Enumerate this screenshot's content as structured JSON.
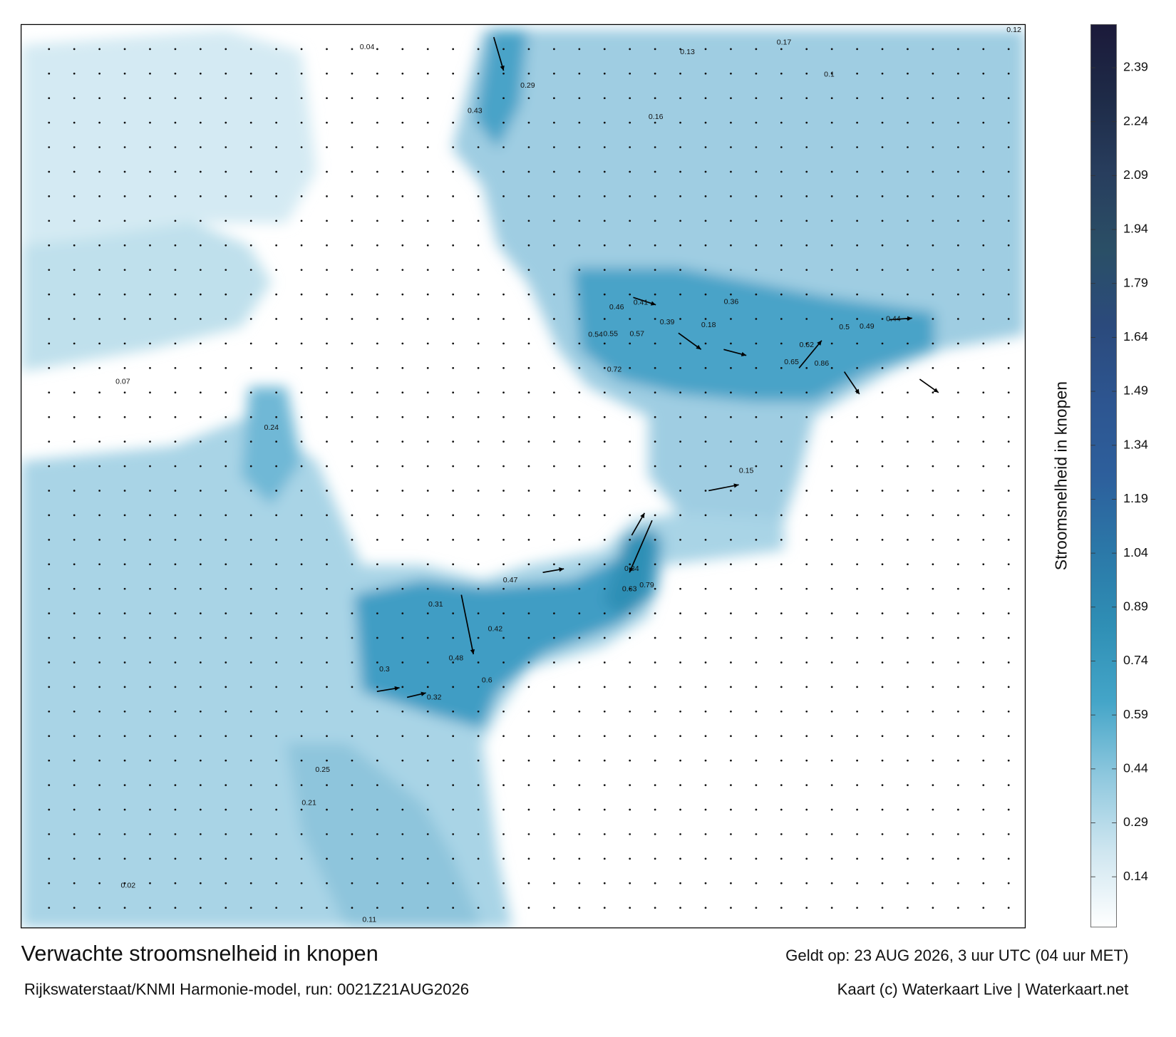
{
  "title": "Verwachte stroomsnelheid in knopen",
  "subtitle": "Rijkswaterstaat/KNMI Harmonie-model, run: 0021Z21AUG2026",
  "valid_time": "Geldt op: 23 AUG 2026, 3 uur UTC (04 uur MET)",
  "credits": "Kaart (c) Waterkaart Live | Waterkaart.net",
  "colorbar": {
    "label": "Stroomsnelheid in knopen",
    "clim": [
      0,
      2.51
    ],
    "ticks": [
      0.14,
      0.29,
      0.44,
      0.59,
      0.74,
      0.89,
      1.04,
      1.19,
      1.34,
      1.49,
      1.64,
      1.79,
      1.94,
      2.09,
      2.24,
      2.39
    ],
    "colormap": [
      "#ffffff",
      "#cfe6f0",
      "#8fc8de",
      "#44a5c8",
      "#2f8fb5",
      "#2b78a8",
      "#2d5f9c",
      "#2d5590",
      "#2b4a7c",
      "#2a4f66",
      "#283e5e",
      "#1e2b48",
      "#1b1a3a"
    ]
  },
  "map": {
    "labels": [
      0.84,
      0.79,
      0.63,
      0.6,
      0.72,
      0.86,
      0.65,
      0.62,
      0.5,
      0.49,
      0.44,
      0.57,
      0.55,
      0.54,
      0.46,
      0.41,
      0.39,
      0.36,
      0.29,
      0.43,
      0.48,
      0.47,
      0.42,
      0.31,
      0.3,
      0.32,
      0.25,
      0.21,
      0.17,
      0.13,
      0.16,
      0.1,
      0.12,
      0.04,
      0.02,
      0.11,
      0.07,
      0.24,
      0.18,
      0.15
    ]
  }
}
